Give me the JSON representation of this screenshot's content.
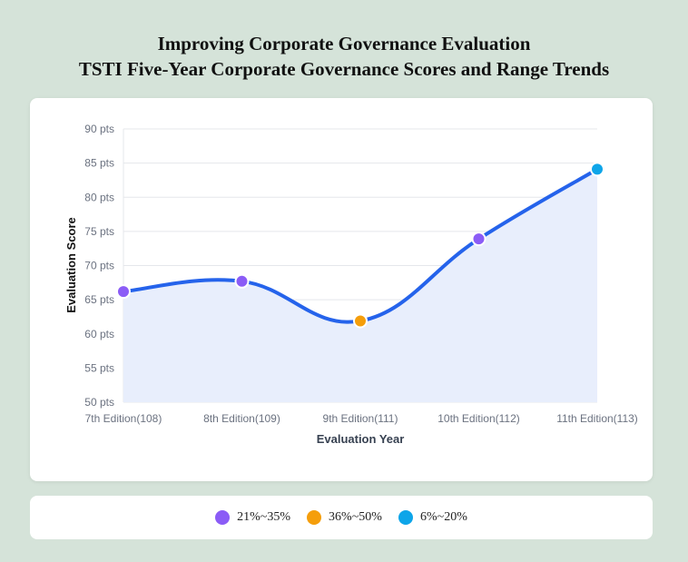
{
  "title_line1": "Improving Corporate Governance Evaluation",
  "title_line2": "TSTI Five-Year Corporate Governance Scores and Range Trends",
  "chart_data": {
    "type": "line",
    "categories": [
      "7th Edition(108)",
      "8th Edition(109)",
      "9th Edition(111)",
      "10th Edition(112)",
      "11th Edition(113)"
    ],
    "values": [
      66.2,
      67.7,
      61.9,
      73.9,
      84.1
    ],
    "point_ranges": [
      "21%~35%",
      "21%~35%",
      "36%~50%",
      "21%~35%",
      "6%~20%"
    ],
    "xlabel": "Evaluation Year",
    "ylabel": "Evaluation Score",
    "ylim": [
      50,
      90
    ],
    "ytick_step": 5,
    "ytick_suffix": " pts",
    "line_color": "#2563eb",
    "fill_color": "#e8eefc",
    "grid": true,
    "legend": [
      {
        "label": "21%~35%",
        "color": "#8b5cf6"
      },
      {
        "label": "36%~50%",
        "color": "#f59e0b"
      },
      {
        "label": "6%~20%",
        "color": "#0ea5e9"
      }
    ],
    "legend_position": "bottom"
  }
}
